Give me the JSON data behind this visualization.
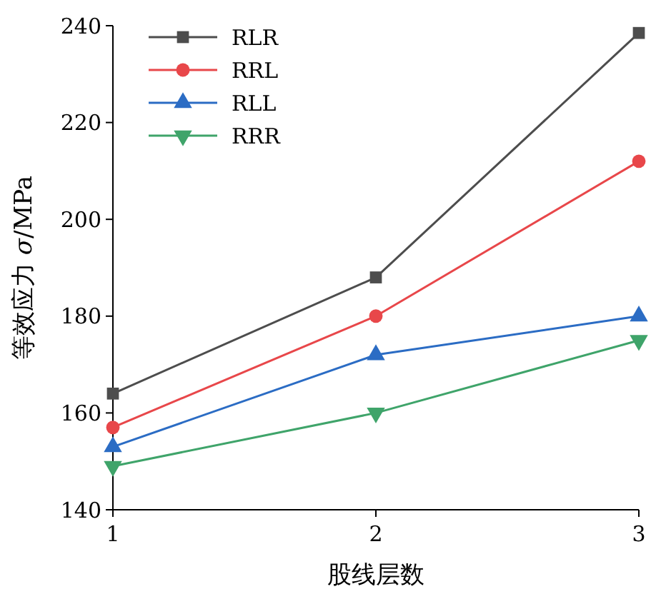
{
  "chart_data": {
    "type": "line",
    "xlabel": "股线层数",
    "ylabel": "等效应力 σ/MPa",
    "x": [
      1,
      2,
      3
    ],
    "xlim": [
      1,
      3
    ],
    "xticks": [
      1,
      2,
      3
    ],
    "ylim": [
      140,
      240
    ],
    "yticks": [
      140,
      160,
      180,
      200,
      220,
      240
    ],
    "legend": "top left",
    "grid": false,
    "line_style": "solid",
    "series": [
      {
        "name": "RLR",
        "color": "#4d4d4d",
        "marker": "square",
        "values": [
          164,
          188,
          238.5
        ]
      },
      {
        "name": "RRL",
        "color": "#e8474a",
        "marker": "circle",
        "values": [
          157,
          180,
          212
        ]
      },
      {
        "name": "RLL",
        "color": "#2b6cc4",
        "marker": "triangle",
        "values": [
          153,
          172,
          180
        ]
      },
      {
        "name": "RRR",
        "color": "#3fa46a",
        "marker": "triangle-down",
        "values": [
          149,
          160,
          175
        ]
      }
    ]
  }
}
